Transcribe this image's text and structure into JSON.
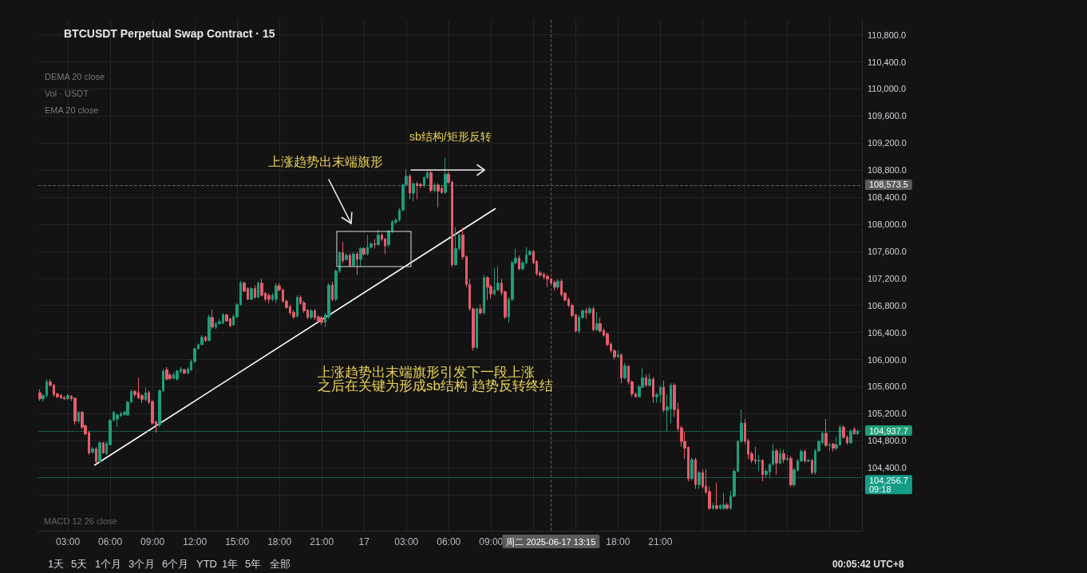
{
  "chart_data": {
    "type": "candlestick",
    "title": "BTCUSDT Perpetual Swap Contract · 15",
    "x": [
      "2025-06-16T01:00",
      "2025-06-16T01:15",
      "2025-06-16T01:30",
      "2025-06-16T01:45",
      "2025-06-16T02:00",
      "2025-06-16T02:15",
      "2025-06-16T02:30",
      "2025-06-16T02:45",
      "2025-06-16T03:00",
      "2025-06-16T03:15",
      "2025-06-16T03:30",
      "2025-06-16T03:45",
      "2025-06-16T04:00",
      "2025-06-16T04:15",
      "2025-06-16T04:30",
      "2025-06-16T04:45",
      "2025-06-16T05:00",
      "2025-06-16T05:15",
      "2025-06-16T05:30",
      "2025-06-16T05:45",
      "2025-06-16T06:00",
      "2025-06-16T06:15",
      "2025-06-16T06:30",
      "2025-06-16T06:45",
      "2025-06-16T07:00",
      "2025-06-16T07:15",
      "2025-06-16T07:30",
      "2025-06-16T07:45",
      "2025-06-16T08:00",
      "2025-06-16T08:15",
      "2025-06-16T08:30",
      "2025-06-16T08:45",
      "2025-06-16T09:00",
      "2025-06-16T09:15",
      "2025-06-16T09:30",
      "2025-06-16T09:45",
      "2025-06-16T10:00",
      "2025-06-16T10:15",
      "2025-06-16T10:30",
      "2025-06-16T10:45",
      "2025-06-16T11:00",
      "2025-06-16T11:15",
      "2025-06-16T11:30",
      "2025-06-16T11:45",
      "2025-06-16T12:00",
      "2025-06-16T12:15",
      "2025-06-16T12:30",
      "2025-06-16T12:45",
      "2025-06-16T13:00",
      "2025-06-16T13:15",
      "2025-06-16T13:30",
      "2025-06-16T13:45",
      "2025-06-16T14:00",
      "2025-06-16T14:15",
      "2025-06-16T14:30",
      "2025-06-16T14:45",
      "2025-06-16T15:00",
      "2025-06-16T15:15",
      "2025-06-16T15:30",
      "2025-06-16T15:45",
      "2025-06-16T16:00",
      "2025-06-16T16:15",
      "2025-06-16T16:30",
      "2025-06-16T16:45",
      "2025-06-16T17:00",
      "2025-06-16T17:15",
      "2025-06-16T17:30",
      "2025-06-16T17:45",
      "2025-06-16T18:00",
      "2025-06-16T18:15",
      "2025-06-16T18:30",
      "2025-06-16T18:45",
      "2025-06-16T19:00",
      "2025-06-16T19:15",
      "2025-06-16T19:30",
      "2025-06-16T19:45",
      "2025-06-16T20:00",
      "2025-06-16T20:15",
      "2025-06-16T20:30",
      "2025-06-16T20:45",
      "2025-06-16T21:00",
      "2025-06-16T21:15",
      "2025-06-16T21:30",
      "2025-06-16T21:45",
      "2025-06-16T22:00",
      "2025-06-16T22:15",
      "2025-06-16T22:30",
      "2025-06-16T22:45",
      "2025-06-16T23:00",
      "2025-06-16T23:15",
      "2025-06-16T23:30",
      "2025-06-16T23:45",
      "2025-06-17T00:00",
      "2025-06-17T00:15",
      "2025-06-17T00:30",
      "2025-06-17T00:45",
      "2025-06-17T01:00",
      "2025-06-17T01:15",
      "2025-06-17T01:30",
      "2025-06-17T01:45",
      "2025-06-17T02:00",
      "2025-06-17T02:15",
      "2025-06-17T02:30",
      "2025-06-17T02:45",
      "2025-06-17T03:00",
      "2025-06-17T03:15",
      "2025-06-17T03:30",
      "2025-06-17T03:45",
      "2025-06-17T04:00",
      "2025-06-17T04:15",
      "2025-06-17T04:30",
      "2025-06-17T04:45",
      "2025-06-17T05:00",
      "2025-06-17T05:15",
      "2025-06-17T05:30",
      "2025-06-17T05:45",
      "2025-06-17T06:00",
      "2025-06-17T06:15",
      "2025-06-17T06:30",
      "2025-06-17T06:45",
      "2025-06-17T07:00",
      "2025-06-17T07:15",
      "2025-06-17T07:30",
      "2025-06-17T07:45",
      "2025-06-17T08:00",
      "2025-06-17T08:15",
      "2025-06-17T08:30",
      "2025-06-17T08:45",
      "2025-06-17T09:00",
      "2025-06-17T09:15",
      "2025-06-17T09:30",
      "2025-06-17T09:45",
      "2025-06-17T10:00",
      "2025-06-17T10:15",
      "2025-06-17T10:30",
      "2025-06-17T10:45",
      "2025-06-17T11:00",
      "2025-06-17T11:15",
      "2025-06-17T11:30",
      "2025-06-17T11:45",
      "2025-06-17T12:00",
      "2025-06-17T12:15",
      "2025-06-17T12:30",
      "2025-06-17T12:45",
      "2025-06-17T13:00",
      "2025-06-17T13:15",
      "2025-06-17T13:30",
      "2025-06-17T13:45",
      "2025-06-17T14:00",
      "2025-06-17T14:15",
      "2025-06-17T14:30",
      "2025-06-17T14:45",
      "2025-06-17T15:00",
      "2025-06-17T15:15",
      "2025-06-17T15:30",
      "2025-06-17T15:45",
      "2025-06-17T16:00",
      "2025-06-17T16:15",
      "2025-06-17T16:30",
      "2025-06-17T16:45",
      "2025-06-17T17:00",
      "2025-06-17T17:15",
      "2025-06-17T17:30",
      "2025-06-17T17:45",
      "2025-06-17T18:00",
      "2025-06-17T18:15",
      "2025-06-17T18:30",
      "2025-06-17T18:45",
      "2025-06-17T19:00",
      "2025-06-17T19:15",
      "2025-06-17T19:30",
      "2025-06-17T19:45",
      "2025-06-17T20:00",
      "2025-06-17T20:15",
      "2025-06-17T20:30",
      "2025-06-17T20:45",
      "2025-06-17T21:00",
      "2025-06-17T21:15",
      "2025-06-17T21:30",
      "2025-06-17T21:45",
      "2025-06-17T22:00",
      "2025-06-17T22:15",
      "2025-06-17T22:30",
      "2025-06-17T22:45",
      "2025-06-17T23:00",
      "2025-06-17T23:15",
      "2025-06-17T23:30",
      "2025-06-17T23:45",
      "2025-06-18T00:00",
      "2025-06-18T00:15",
      "2025-06-18T00:30",
      "2025-06-18T00:45",
      "2025-06-18T01:00",
      "2025-06-18T01:15",
      "2025-06-18T01:30",
      "2025-06-18T01:45",
      "2025-06-18T02:00",
      "2025-06-18T02:15",
      "2025-06-18T02:30",
      "2025-06-18T02:45",
      "2025-06-18T03:00",
      "2025-06-18T03:15",
      "2025-06-18T03:30",
      "2025-06-18T03:45",
      "2025-06-18T04:00",
      "2025-06-18T04:15",
      "2025-06-18T04:30",
      "2025-06-18T04:45",
      "2025-06-18T05:00",
      "2025-06-18T05:15",
      "2025-06-18T05:30",
      "2025-06-18T05:45",
      "2025-06-18T06:00",
      "2025-06-18T06:15",
      "2025-06-18T06:30",
      "2025-06-18T06:45",
      "2025-06-18T07:00",
      "2025-06-18T07:15",
      "2025-06-18T07:30",
      "2025-06-18T07:45",
      "2025-06-18T08:00",
      "2025-06-18T08:15",
      "2025-06-18T08:30",
      "2025-06-18T08:45",
      "2025-06-18T09:00",
      "2025-06-18T09:15",
      "2025-06-18T09:30",
      "2025-06-18T09:45",
      "2025-06-18T10:00",
      "2025-06-18T10:15",
      "2025-06-18T10:30",
      "2025-06-18T10:45",
      "2025-06-18T11:00"
    ],
    "ohlc": [
      [
        105510,
        105560,
        105390,
        105420
      ],
      [
        105420,
        105490,
        105380,
        105470
      ],
      [
        105470,
        105710,
        105440,
        105670
      ],
      [
        105670,
        105710,
        105600,
        105620
      ],
      [
        105620,
        105640,
        105450,
        105480
      ],
      [
        105490,
        105510,
        105430,
        105450
      ],
      [
        105470,
        105490,
        105420,
        105430
      ],
      [
        105440,
        105460,
        105400,
        105420
      ],
      [
        105420,
        105490,
        105400,
        105470
      ],
      [
        105460,
        105470,
        105390,
        105420
      ],
      [
        105430,
        105440,
        105040,
        105090
      ],
      [
        105090,
        105240,
        105060,
        105220
      ],
      [
        105220,
        105240,
        104970,
        105000
      ],
      [
        105020,
        105040,
        104880,
        104900
      ],
      [
        104920,
        104940,
        104590,
        104620
      ],
      [
        104630,
        104710,
        104610,
        104680
      ],
      [
        104680,
        104710,
        104470,
        104490
      ],
      [
        104490,
        104790,
        104480,
        104770
      ],
      [
        104770,
        104780,
        104610,
        104620
      ],
      [
        104610,
        104790,
        104590,
        104760
      ],
      [
        104740,
        105120,
        104730,
        105100
      ],
      [
        105100,
        105240,
        105090,
        105220
      ],
      [
        105120,
        105200,
        105000,
        105180
      ],
      [
        105170,
        105230,
        105150,
        105200
      ],
      [
        105190,
        105240,
        105170,
        105220
      ],
      [
        105180,
        105390,
        105170,
        105370
      ],
      [
        105370,
        105560,
        105360,
        105530
      ],
      [
        105530,
        105550,
        105450,
        105480
      ],
      [
        105510,
        105730,
        105420,
        105430
      ],
      [
        105470,
        105490,
        105360,
        105410
      ],
      [
        105410,
        105590,
        105380,
        105510
      ],
      [
        105510,
        105540,
        105340,
        105370
      ],
      [
        105380,
        105400,
        105040,
        105060
      ],
      [
        105080,
        105100,
        104920,
        105030
      ],
      [
        105030,
        105560,
        105000,
        105540
      ],
      [
        105540,
        105860,
        105520,
        105830
      ],
      [
        105850,
        105890,
        105690,
        105710
      ],
      [
        105770,
        105800,
        105700,
        105720
      ],
      [
        105720,
        105810,
        105710,
        105780
      ],
      [
        105710,
        105850,
        105690,
        105830
      ],
      [
        105820,
        105890,
        105800,
        105860
      ],
      [
        105850,
        105870,
        105780,
        105800
      ],
      [
        105800,
        105890,
        105780,
        105860
      ],
      [
        105850,
        106000,
        105830,
        105970
      ],
      [
        105970,
        106180,
        105950,
        106160
      ],
      [
        106160,
        106240,
        106150,
        106220
      ],
      [
        106220,
        106360,
        106210,
        106330
      ],
      [
        106330,
        106350,
        106260,
        106280
      ],
      [
        106280,
        106660,
        106270,
        106630
      ],
      [
        106620,
        106740,
        106450,
        106480
      ],
      [
        106480,
        106560,
        106450,
        106530
      ],
      [
        106530,
        106600,
        106520,
        106560
      ],
      [
        106540,
        106690,
        106520,
        106660
      ],
      [
        106660,
        106680,
        106560,
        106570
      ],
      [
        106600,
        106620,
        106480,
        106500
      ],
      [
        106510,
        106670,
        106500,
        106640
      ],
      [
        106630,
        106830,
        106620,
        106810
      ],
      [
        106810,
        107160,
        106800,
        107130
      ],
      [
        107130,
        107150,
        107000,
        107010
      ],
      [
        107050,
        107070,
        106880,
        106890
      ],
      [
        106890,
        107070,
        106880,
        107050
      ],
      [
        107050,
        107100,
        106900,
        106920
      ],
      [
        106920,
        107160,
        106910,
        107130
      ],
      [
        107130,
        107190,
        106930,
        106950
      ],
      [
        106980,
        107000,
        106860,
        106890
      ],
      [
        106950,
        106980,
        106830,
        106890
      ],
      [
        106890,
        106980,
        106860,
        106950
      ],
      [
        106890,
        107130,
        106830,
        107090
      ],
      [
        107090,
        107130,
        107010,
        107030
      ],
      [
        107030,
        107050,
        106840,
        106860
      ],
      [
        106860,
        106890,
        106750,
        106770
      ],
      [
        106780,
        106810,
        106660,
        106690
      ],
      [
        106700,
        106730,
        106600,
        106630
      ],
      [
        106640,
        106950,
        106620,
        106920
      ],
      [
        106920,
        106950,
        106810,
        106830
      ],
      [
        106840,
        106870,
        106690,
        106720
      ],
      [
        106730,
        106750,
        106600,
        106620
      ],
      [
        106620,
        106750,
        106600,
        106720
      ],
      [
        106720,
        106750,
        106580,
        106620
      ],
      [
        106630,
        106660,
        106550,
        106570
      ],
      [
        106620,
        106640,
        106510,
        106550
      ],
      [
        106550,
        106690,
        106480,
        106660
      ],
      [
        106630,
        107130,
        106600,
        107100
      ],
      [
        107100,
        107150,
        106860,
        106890
      ],
      [
        106890,
        107330,
        106860,
        107310
      ],
      [
        107310,
        107600,
        107280,
        107580
      ],
      [
        107580,
        107740,
        107430,
        107460
      ],
      [
        107480,
        107570,
        107460,
        107540
      ],
      [
        107540,
        107570,
        107370,
        107390
      ],
      [
        107390,
        107590,
        107370,
        107560
      ],
      [
        107560,
        107590,
        107250,
        107480
      ],
      [
        107480,
        107660,
        107370,
        107640
      ],
      [
        107640,
        107660,
        107540,
        107560
      ],
      [
        107560,
        107840,
        107540,
        107660
      ],
      [
        107660,
        107740,
        107640,
        107710
      ],
      [
        107710,
        107780,
        107640,
        107700
      ],
      [
        107700,
        107920,
        107680,
        107840
      ],
      [
        107840,
        107870,
        107750,
        107780
      ],
      [
        107780,
        107800,
        107560,
        107680
      ],
      [
        107700,
        107920,
        107660,
        107900
      ],
      [
        107900,
        108060,
        107870,
        108040
      ],
      [
        108030,
        108090,
        108000,
        108060
      ],
      [
        108060,
        108240,
        108040,
        108210
      ],
      [
        108210,
        108600,
        108190,
        108580
      ],
      [
        108580,
        108810,
        108560,
        108710
      ],
      [
        108710,
        108740,
        108370,
        108460
      ],
      [
        108460,
        108630,
        108340,
        108600
      ],
      [
        108600,
        108630,
        108370,
        108570
      ],
      [
        108590,
        108610,
        108530,
        108570
      ],
      [
        108570,
        108710,
        108540,
        108690
      ],
      [
        108690,
        108800,
        108670,
        108760
      ],
      [
        108760,
        108790,
        108470,
        108500
      ],
      [
        108500,
        108610,
        108470,
        108580
      ],
      [
        108580,
        108610,
        108250,
        108490
      ],
      [
        108530,
        108570,
        108450,
        108470
      ],
      [
        108470,
        108980,
        108450,
        108740
      ],
      [
        108740,
        108780,
        108600,
        108620
      ],
      [
        108620,
        108650,
        107370,
        107400
      ],
      [
        107400,
        107960,
        107390,
        107640
      ],
      [
        107640,
        107860,
        107610,
        107840
      ],
      [
        107840,
        107950,
        107480,
        107520
      ],
      [
        107520,
        107540,
        107070,
        107110
      ],
      [
        107110,
        107190,
        106720,
        106750
      ],
      [
        106750,
        106770,
        106130,
        106180
      ],
      [
        106180,
        106770,
        106150,
        106750
      ],
      [
        106750,
        106810,
        106660,
        106690
      ],
      [
        106690,
        107250,
        106660,
        107210
      ],
      [
        107210,
        107230,
        106880,
        107070
      ],
      [
        107080,
        107110,
        106900,
        106970
      ],
      [
        106970,
        107350,
        106950,
        107030
      ],
      [
        107030,
        107380,
        107010,
        107130
      ],
      [
        107130,
        107190,
        106950,
        106990
      ],
      [
        107000,
        107020,
        106600,
        106630
      ],
      [
        106630,
        106920,
        106540,
        106890
      ],
      [
        106890,
        107470,
        106860,
        107430
      ],
      [
        107430,
        107640,
        107410,
        107500
      ],
      [
        107500,
        107540,
        107320,
        107340
      ],
      [
        107340,
        107460,
        107320,
        107430
      ],
      [
        107430,
        107660,
        107410,
        107550
      ],
      [
        107550,
        107620,
        107540,
        107600
      ],
      [
        107600,
        107620,
        107410,
        107430
      ],
      [
        107450,
        107470,
        107240,
        107270
      ],
      [
        107280,
        107310,
        107220,
        107250
      ],
      [
        107260,
        107290,
        107190,
        107220
      ],
      [
        107230,
        107260,
        107070,
        107190
      ],
      [
        107190,
        107210,
        107100,
        107130
      ],
      [
        107140,
        107170,
        107020,
        107070
      ],
      [
        107070,
        107190,
        107040,
        107160
      ],
      [
        107160,
        107190,
        106930,
        106960
      ],
      [
        106980,
        107000,
        106860,
        106880
      ],
      [
        106890,
        106920,
        106770,
        106800
      ],
      [
        106800,
        106830,
        106620,
        106650
      ],
      [
        106660,
        106680,
        106400,
        106420
      ],
      [
        106420,
        106660,
        106380,
        106630
      ],
      [
        106620,
        106740,
        106600,
        106720
      ],
      [
        106720,
        106760,
        106600,
        106690
      ],
      [
        106690,
        106780,
        106660,
        106750
      ],
      [
        106750,
        106780,
        106420,
        106440
      ],
      [
        106440,
        106700,
        106420,
        106530
      ],
      [
        106530,
        106620,
        106400,
        106420
      ],
      [
        106430,
        106460,
        106340,
        106360
      ],
      [
        106380,
        106400,
        106200,
        106220
      ],
      [
        106230,
        106260,
        106100,
        106130
      ],
      [
        106130,
        106150,
        106000,
        106040
      ],
      [
        106040,
        106140,
        106020,
        106070
      ],
      [
        106070,
        106090,
        105650,
        105730
      ],
      [
        105730,
        105950,
        105710,
        105910
      ],
      [
        105900,
        105920,
        105630,
        105670
      ],
      [
        105670,
        105690,
        105450,
        105490
      ],
      [
        105490,
        105510,
        105440,
        105450
      ],
      [
        105450,
        105620,
        105440,
        105600
      ],
      [
        105590,
        105870,
        105580,
        105730
      ],
      [
        105730,
        105780,
        105600,
        105620
      ],
      [
        105620,
        105790,
        105600,
        105710
      ],
      [
        105710,
        105740,
        105360,
        105450
      ],
      [
        105450,
        105510,
        105360,
        105480
      ],
      [
        105480,
        105620,
        105360,
        105590
      ],
      [
        105590,
        105690,
        105220,
        105250
      ],
      [
        105250,
        105480,
        104940,
        105300
      ],
      [
        105270,
        105650,
        105060,
        105620
      ],
      [
        105620,
        105650,
        105150,
        105260
      ],
      [
        105260,
        105360,
        104940,
        104980
      ],
      [
        104990,
        105020,
        104710,
        104790
      ],
      [
        104790,
        104930,
        104530,
        104690
      ],
      [
        104700,
        104720,
        104200,
        104240
      ],
      [
        104240,
        104550,
        104210,
        104520
      ],
      [
        104520,
        104550,
        104090,
        104150
      ],
      [
        104150,
        104350,
        104090,
        104330
      ],
      [
        104330,
        104380,
        104090,
        104120
      ],
      [
        104130,
        104380,
        104010,
        104040
      ],
      [
        104050,
        104120,
        103780,
        103800
      ],
      [
        103800,
        103880,
        103780,
        103840
      ],
      [
        103840,
        104180,
        103780,
        103800
      ],
      [
        103800,
        103860,
        103780,
        103840
      ],
      [
        103800,
        104030,
        103780,
        103850
      ],
      [
        103850,
        103880,
        103780,
        103800
      ],
      [
        103800,
        104060,
        103780,
        103980
      ],
      [
        103980,
        104380,
        103960,
        104350
      ],
      [
        104350,
        104810,
        104330,
        104790
      ],
      [
        104790,
        105260,
        104770,
        105060
      ],
      [
        105060,
        105120,
        104750,
        104790
      ],
      [
        104800,
        104830,
        104530,
        104600
      ],
      [
        104610,
        104640,
        104470,
        104510
      ],
      [
        104520,
        104710,
        104450,
        104500
      ],
      [
        104500,
        104590,
        104350,
        104510
      ],
      [
        104510,
        104530,
        104200,
        104300
      ],
      [
        104300,
        104380,
        104260,
        104350
      ],
      [
        104340,
        104470,
        104240,
        104450
      ],
      [
        104450,
        104750,
        104430,
        104650
      ],
      [
        104650,
        104680,
        104300,
        104470
      ],
      [
        104470,
        104680,
        104450,
        104610
      ],
      [
        104610,
        104670,
        104470,
        104520
      ],
      [
        104520,
        104590,
        104500,
        104540
      ],
      [
        104540,
        104570,
        104120,
        104150
      ],
      [
        104150,
        104400,
        104120,
        104370
      ],
      [
        104360,
        104530,
        104350,
        104500
      ],
      [
        104500,
        104670,
        104490,
        104640
      ],
      [
        104640,
        104670,
        104470,
        104500
      ],
      [
        104500,
        104530,
        104480,
        104510
      ],
      [
        104510,
        104530,
        104300,
        104330
      ],
      [
        104330,
        104680,
        104300,
        104650
      ],
      [
        104650,
        104810,
        104630,
        104790
      ],
      [
        104770,
        104940,
        104740,
        104910
      ],
      [
        104910,
        105120,
        104710,
        104730
      ],
      [
        104730,
        104770,
        104650,
        104740
      ],
      [
        104750,
        104770,
        104640,
        104690
      ],
      [
        104690,
        104860,
        104660,
        104740
      ],
      [
        104740,
        105030,
        104720,
        105000
      ],
      [
        105000,
        105030,
        104830,
        104850
      ],
      [
        104850,
        104880,
        104740,
        104770
      ],
      [
        104770,
        104970,
        104750,
        104940
      ],
      [
        104970,
        105000,
        104890,
        104900
      ],
      [
        104900,
        104970,
        104890,
        104940
      ]
    ],
    "colors": [
      "#e45d6b",
      "#1f9d7a",
      "#1f9d7a",
      "#e45d6b",
      "#e45d6b",
      "#e45d6b",
      "#e45d6b",
      "#e45d6b",
      "#1f9d7a",
      "#e45d6b",
      "#e45d6b",
      "#1f9d7a",
      "#e45d6b",
      "#e45d6b",
      "#e45d6b",
      "#1f9d7a",
      "#e45d6b",
      "#1f9d7a",
      "#e45d6b",
      "#1f9d7a",
      "#1f9d7a",
      "#1f9d7a",
      "#1f9d7a",
      "#1f9d7a",
      "#1f9d7a",
      "#1f9d7a",
      "#1f9d7a",
      "#e45d6b",
      "#e45d6b",
      "#e45d6b",
      "#1f9d7a",
      "#e45d6b",
      "#e45d6b",
      "#e45d6b",
      "#1f9d7a",
      "#1f9d7a",
      "#e45d6b",
      "#e45d6b",
      "#1f9d7a",
      "#1f9d7a",
      "#1f9d7a",
      "#e45d6b",
      "#1f9d7a",
      "#1f9d7a",
      "#1f9d7a",
      "#1f9d7a",
      "#1f9d7a",
      "#e45d6b",
      "#1f9d7a",
      "#e45d6b",
      "#1f9d7a",
      "#1f9d7a",
      "#1f9d7a",
      "#e45d6b",
      "#e45d6b",
      "#1f9d7a",
      "#1f9d7a",
      "#1f9d7a",
      "#e45d6b",
      "#e45d6b",
      "#1f9d7a",
      "#e45d6b",
      "#1f9d7a",
      "#e45d6b",
      "#e45d6b",
      "#e45d6b",
      "#1f9d7a",
      "#1f9d7a",
      "#e45d6b",
      "#e45d6b",
      "#e45d6b",
      "#e45d6b",
      "#e45d6b",
      "#1f9d7a",
      "#e45d6b",
      "#e45d6b",
      "#e45d6b",
      "#1f9d7a",
      "#e45d6b",
      "#e45d6b",
      "#e45d6b",
      "#1f9d7a",
      "#1f9d7a",
      "#e45d6b",
      "#1f9d7a",
      "#1f9d7a",
      "#e45d6b",
      "#1f9d7a",
      "#e45d6b",
      "#1f9d7a",
      "#e45d6b",
      "#1f9d7a",
      "#e45d6b",
      "#1f9d7a",
      "#1f9d7a",
      "#e45d6b",
      "#1f9d7a",
      "#e45d6b",
      "#e45d6b",
      "#1f9d7a",
      "#1f9d7a",
      "#1f9d7a",
      "#1f9d7a",
      "#1f9d7a",
      "#1f9d7a",
      "#e45d6b",
      "#1f9d7a",
      "#e45d6b",
      "#e45d6b",
      "#1f9d7a",
      "#1f9d7a",
      "#e45d6b",
      "#1f9d7a",
      "#e45d6b",
      "#e45d6b",
      "#1f9d7a",
      "#e45d6b",
      "#e45d6b",
      "#1f9d7a",
      "#1f9d7a",
      "#e45d6b",
      "#e45d6b",
      "#e45d6b",
      "#e45d6b",
      "#1f9d7a",
      "#e45d6b",
      "#1f9d7a",
      "#e45d6b",
      "#e45d6b",
      "#1f9d7a",
      "#1f9d7a",
      "#e45d6b",
      "#e45d6b",
      "#1f9d7a",
      "#1f9d7a",
      "#1f9d7a",
      "#e45d6b",
      "#1f9d7a",
      "#1f9d7a",
      "#1f9d7a",
      "#e45d6b",
      "#e45d6b",
      "#e45d6b",
      "#e45d6b",
      "#e45d6b",
      "#e45d6b",
      "#e45d6b",
      "#1f9d7a",
      "#e45d6b",
      "#e45d6b",
      "#e45d6b",
      "#e45d6b",
      "#e45d6b",
      "#1f9d7a",
      "#1f9d7a",
      "#e45d6b",
      "#1f9d7a",
      "#e45d6b",
      "#1f9d7a",
      "#e45d6b",
      "#e45d6b",
      "#e45d6b",
      "#e45d6b",
      "#e45d6b",
      "#1f9d7a",
      "#e45d6b",
      "#1f9d7a",
      "#e45d6b",
      "#e45d6b",
      "#e45d6b",
      "#1f9d7a",
      "#1f9d7a",
      "#e45d6b",
      "#1f9d7a",
      "#e45d6b",
      "#1f9d7a",
      "#1f9d7a",
      "#e45d6b",
      "#1f9d7a",
      "#1f9d7a",
      "#e45d6b",
      "#e45d6b",
      "#e45d6b",
      "#e45d6b",
      "#e45d6b",
      "#1f9d7a",
      "#e45d6b",
      "#1f9d7a",
      "#e45d6b",
      "#e45d6b",
      "#e45d6b",
      "#1f9d7a",
      "#e45d6b",
      "#1f9d7a",
      "#1f9d7a",
      "#e45d6b",
      "#1f9d7a",
      "#1f9d7a",
      "#1f9d7a",
      "#1f9d7a",
      "#e45d6b",
      "#e45d6b",
      "#e45d6b",
      "#e45d6b",
      "#1f9d7a",
      "#e45d6b",
      "#1f9d7a",
      "#1f9d7a",
      "#1f9d7a",
      "#e45d6b",
      "#1f9d7a",
      "#e45d6b",
      "#1f9d7a",
      "#e45d6b",
      "#1f9d7a",
      "#1f9d7a",
      "#1f9d7a",
      "#e45d6b",
      "#1f9d7a",
      "#e45d6b",
      "#1f9d7a",
      "#1f9d7a",
      "#1f9d7a",
      "#e45d6b",
      "#1f9d7a",
      "#e45d6b",
      "#1f9d7a",
      "#1f9d7a",
      "#e45d6b",
      "#e45d6b",
      "#1f9d7a",
      "#e45d6b",
      "#1f9d7a"
    ],
    "series": [
      {
        "type": "line",
        "x": [
          "2025-06-16T04:54",
          "2025-06-17T09:18"
        ],
        "values": [
          104440,
          108230
        ],
        "color": "#ffffff"
      }
    ],
    "xlim": [
      "2025-06-16T00:54",
      "2025-06-18T11:18"
    ],
    "xticks": [
      {
        "value": "2025-06-16T03:00",
        "label": "03:00"
      },
      {
        "value": "2025-06-16T06:00",
        "label": "06:00"
      },
      {
        "value": "2025-06-16T09:00",
        "label": "09:00"
      },
      {
        "value": "2025-06-16T12:00",
        "label": "12:00"
      },
      {
        "value": "2025-06-16T15:00",
        "label": "15:00"
      },
      {
        "value": "2025-06-16T18:00",
        "label": "18:00"
      },
      {
        "value": "2025-06-16T21:00",
        "label": "21:00"
      },
      {
        "value": "2025-06-17T00:00",
        "label": "17"
      },
      {
        "value": "2025-06-17T03:00",
        "label": "03:00"
      },
      {
        "value": "2025-06-17T06:00",
        "label": "06:00"
      },
      {
        "value": "2025-06-17T09:00",
        "label": "09:00"
      },
      {
        "value": "2025-06-17T12:00",
        "label": null
      },
      {
        "value": "2025-06-17T15:00",
        "label": null
      },
      {
        "value": "2025-06-17T18:00",
        "label": "18:00"
      },
      {
        "value": "2025-06-17T21:00",
        "label": "21:00"
      },
      {
        "value": "2025-06-18T00:00",
        "label": null
      },
      {
        "value": "2025-06-18T03:00",
        "label": null
      },
      {
        "value": "2025-06-18T06:00",
        "label": null
      },
      {
        "value": "2025-06-18T09:00",
        "label": null
      }
    ],
    "ylim": [
      103470,
      111020
    ],
    "yticks": [
      {
        "value": 104000,
        "label": null
      },
      {
        "value": 104400,
        "label": "104,400.0"
      },
      {
        "value": 104800,
        "label": "104,800.0"
      },
      {
        "value": 105200,
        "label": "105,200.0"
      },
      {
        "value": 105600,
        "label": "105,600.0"
      },
      {
        "value": 106000,
        "label": "106,000.0"
      },
      {
        "value": 106400,
        "label": "106,400.0"
      },
      {
        "value": 106800,
        "label": "106,800.0"
      },
      {
        "value": 107200,
        "label": "107,200.0"
      },
      {
        "value": 107600,
        "label": "107,600.0"
      },
      {
        "value": 108000,
        "label": "108,000.0"
      },
      {
        "value": 108400,
        "label": "108,400.0"
      },
      {
        "value": 108800,
        "label": "108,800.0"
      },
      {
        "value": 109200,
        "label": "109,200.0"
      },
      {
        "value": 109600,
        "label": "109,600.0"
      },
      {
        "value": 110000,
        "label": "110,000.0"
      },
      {
        "value": 110400,
        "label": "110,400.0"
      },
      {
        "value": 110800,
        "label": "110,800.0"
      }
    ],
    "grid": true,
    "ref_lines": [
      {
        "axis": "y",
        "value": 108573.5,
        "label": "108,573.5",
        "color": "#5a5a5a",
        "line_style": "dashed"
      },
      {
        "axis": "x",
        "value": "2025-06-17T13:15",
        "label": "周二 2025-06-17 13:15",
        "color": "#5a5a5a",
        "line_style": "dashed"
      },
      {
        "axis": "y",
        "value": 104937.7,
        "label": "104,937.7",
        "color": "#1f9d7a",
        "line_style": "dotted"
      },
      {
        "axis": "y",
        "value": 104256.7,
        "label": "104,256.7\n09:18",
        "color": "#159c86",
        "line_style": "dotted"
      }
    ],
    "annotations": [
      "上涨趋势出末端旗形",
      "sb结构/矩形反转",
      "上涨趋势出末端旗形引发下一段上涨",
      "之后在关键为形成sb结构 趋势反转终结",
      "DEMA 20 close",
      "Vol · USDT",
      "EMA 20 close",
      "MACD 12 26 close",
      "1天",
      "5天",
      "1个月",
      "3个月",
      "6个月",
      "YTD",
      "1年",
      "5年",
      "全部",
      "00:05:42 UTC+8"
    ]
  }
}
